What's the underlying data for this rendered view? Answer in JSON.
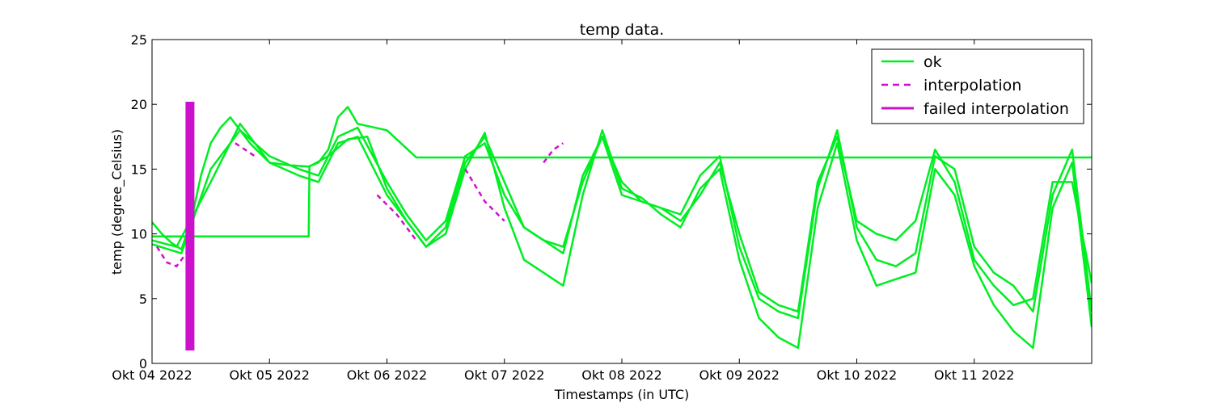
{
  "chart_data": {
    "type": "line",
    "title": "temp data.",
    "xlabel": "Timestamps (in UTC)",
    "ylabel": "temp (degree_Celsius)",
    "x_type": "date",
    "xlim": [
      "2022-10-04T00:00",
      "2022-10-12T00:00"
    ],
    "ylim": [
      0,
      25
    ],
    "x_ticks": [
      {
        "at": "2022-10-04T00:00",
        "label": "Okt 04 2022"
      },
      {
        "at": "2022-10-05T00:00",
        "label": "Okt 05 2022"
      },
      {
        "at": "2022-10-06T00:00",
        "label": "Okt 06 2022"
      },
      {
        "at": "2022-10-07T00:00",
        "label": "Okt 07 2022"
      },
      {
        "at": "2022-10-08T00:00",
        "label": "Okt 08 2022"
      },
      {
        "at": "2022-10-09T00:00",
        "label": "Okt 09 2022"
      },
      {
        "at": "2022-10-10T00:00",
        "label": "Okt 10 2022"
      },
      {
        "at": "2022-10-11T00:00",
        "label": "Okt 11 2022"
      }
    ],
    "y_ticks": [
      {
        "at": 0,
        "label": "0"
      },
      {
        "at": 5,
        "label": "5"
      },
      {
        "at": 10,
        "label": "10"
      },
      {
        "at": 15,
        "label": "15"
      },
      {
        "at": 20,
        "label": "20"
      },
      {
        "at": 25,
        "label": "25"
      }
    ],
    "grid": false,
    "legend": {
      "position": "top-right",
      "entries": [
        {
          "label": "ok",
          "color": "#00ee22",
          "style": "solid"
        },
        {
          "label": "interpolation",
          "color": "#cc11cc",
          "style": "dashed"
        },
        {
          "label": "failed interpolation",
          "color": "#cc11cc",
          "style": "solid-thick"
        }
      ]
    },
    "colors": {
      "ok": "#00ee22",
      "interpolation": "#cc11cc",
      "failed": "#cc11cc"
    },
    "series": [
      {
        "kind": "ok",
        "x": [
          "2022-10-04T00:00",
          "2022-10-04T02:00",
          "2022-10-04T04:00",
          "2022-10-04T06:00",
          "2022-10-04T08:00",
          "2022-10-04T10:00",
          "2022-10-04T12:00",
          "2022-10-04T14:00",
          "2022-10-04T16:00",
          "2022-10-04T18:00",
          "2022-10-04T20:00",
          "2022-10-05T00:00",
          "2022-10-05T04:00",
          "2022-10-05T08:00",
          "2022-10-05T10:00",
          "2022-10-05T12:00",
          "2022-10-05T14:00",
          "2022-10-05T16:00",
          "2022-10-05T18:00",
          "2022-10-06T00:00",
          "2022-10-06T06:00",
          "2022-10-06T12:00",
          "2022-10-06T18:00",
          "2022-10-07T00:00",
          "2022-10-07T06:00",
          "2022-10-07T12:00",
          "2022-10-07T18:00",
          "2022-10-08T00:00",
          "2022-10-08T06:00",
          "2022-10-08T12:00",
          "2022-10-08T18:00",
          "2022-10-09T00:00",
          "2022-10-09T06:00",
          "2022-10-09T12:00",
          "2022-10-09T18:00",
          "2022-10-10T00:00",
          "2022-10-10T06:00",
          "2022-10-10T12:00",
          "2022-10-10T18:00",
          "2022-10-11T00:00",
          "2022-10-11T06:00",
          "2022-10-11T12:00",
          "2022-10-11T18:00",
          "2022-10-12T00:00"
        ],
        "y": [
          10.9,
          10.0,
          9.3,
          8.8,
          11.0,
          14.5,
          17.0,
          18.2,
          19.0,
          18.0,
          17.0,
          15.5,
          15.3,
          15.2,
          15.5,
          16.5,
          19.0,
          19.8,
          18.5,
          18.0,
          15.9,
          15.9,
          15.9,
          15.9,
          15.9,
          15.9,
          15.9,
          15.9,
          15.9,
          15.9,
          15.9,
          15.9,
          15.9,
          15.9,
          15.9,
          15.9,
          15.9,
          15.9,
          15.9,
          15.9,
          15.9,
          15.9,
          15.9,
          15.9
        ]
      },
      {
        "kind": "ok",
        "x": [
          "2022-10-04T00:00",
          "2022-10-04T06:00",
          "2022-10-04T12:00",
          "2022-10-04T18:00",
          "2022-10-05T00:00",
          "2022-10-05T06:00",
          "2022-10-05T08:00",
          "2022-10-05T08:10",
          "2022-10-05T12:00",
          "2022-10-05T16:00",
          "2022-10-05T20:00",
          "2022-10-06T00:00",
          "2022-10-06T04:00",
          "2022-10-06T08:00",
          "2022-10-06T12:00",
          "2022-10-06T16:00",
          "2022-10-06T20:00",
          "2022-10-07T00:00",
          "2022-10-07T04:00",
          "2022-10-07T08:00",
          "2022-10-07T12:00",
          "2022-10-07T16:00",
          "2022-10-07T20:00",
          "2022-10-08T00:00",
          "2022-10-08T04:00",
          "2022-10-08T08:00",
          "2022-10-08T12:00",
          "2022-10-08T16:00",
          "2022-10-08T20:00",
          "2022-10-09T00:00",
          "2022-10-09T04:00",
          "2022-10-09T08:00",
          "2022-10-09T12:00",
          "2022-10-09T16:00",
          "2022-10-09T20:00",
          "2022-10-10T00:00",
          "2022-10-10T04:00",
          "2022-10-10T08:00",
          "2022-10-10T12:00",
          "2022-10-10T16:00",
          "2022-10-10T20:00",
          "2022-10-11T00:00",
          "2022-10-11T04:00",
          "2022-10-11T08:00",
          "2022-10-11T12:00",
          "2022-10-11T16:00",
          "2022-10-11T20:00",
          "2022-10-12T00:00"
        ],
        "y": [
          9.8,
          9.8,
          9.8,
          9.8,
          9.8,
          9.8,
          9.8,
          15.2,
          16.0,
          17.3,
          17.5,
          13.5,
          11.0,
          9.0,
          10.5,
          15.5,
          17.5,
          14.0,
          10.5,
          9.5,
          9.0,
          14.0,
          17.5,
          14.0,
          12.5,
          12.0,
          11.0,
          13.0,
          15.5,
          10.0,
          5.5,
          4.5,
          4.0,
          14.0,
          17.5,
          11.0,
          10.0,
          9.5,
          11.0,
          16.5,
          14.0,
          8.0,
          6.0,
          4.5,
          5.0,
          14.0,
          14.0,
          6.2
        ]
      },
      {
        "kind": "ok",
        "x": [
          "2022-10-04T00:00",
          "2022-10-04T05:00",
          "2022-10-04T12:00",
          "2022-10-04T18:00",
          "2022-10-05T00:00",
          "2022-10-05T06:00",
          "2022-10-05T10:00",
          "2022-10-05T14:00",
          "2022-10-05T18:00",
          "2022-10-06T00:00",
          "2022-10-06T04:00",
          "2022-10-06T08:00",
          "2022-10-06T12:00",
          "2022-10-06T16:00",
          "2022-10-06T20:00",
          "2022-10-07T00:00",
          "2022-10-07T04:00",
          "2022-10-07T08:00",
          "2022-10-07T12:00",
          "2022-10-07T16:00",
          "2022-10-07T20:00",
          "2022-10-08T00:00",
          "2022-10-08T04:00",
          "2022-10-08T08:00",
          "2022-10-08T12:00",
          "2022-10-08T16:00",
          "2022-10-08T20:00",
          "2022-10-09T00:00",
          "2022-10-09T04:00",
          "2022-10-09T08:00",
          "2022-10-09T12:00",
          "2022-10-09T16:00",
          "2022-10-09T20:00",
          "2022-10-10T00:00",
          "2022-10-10T04:00",
          "2022-10-10T08:00",
          "2022-10-10T12:00",
          "2022-10-10T16:00",
          "2022-10-10T20:00",
          "2022-10-11T00:00",
          "2022-10-11T04:00",
          "2022-10-11T08:00",
          "2022-10-11T12:00",
          "2022-10-11T16:00",
          "2022-10-11T20:00",
          "2022-10-12T00:00"
        ],
        "y": [
          9.5,
          9.0,
          14.0,
          18.5,
          15.5,
          14.5,
          14.0,
          17.0,
          17.5,
          13.0,
          11.0,
          9.0,
          10.0,
          15.0,
          17.8,
          12.0,
          8.0,
          7.0,
          6.0,
          13.0,
          18.0,
          13.5,
          12.8,
          11.5,
          10.5,
          13.5,
          15.0,
          8.0,
          3.5,
          2.0,
          1.2,
          12.0,
          17.0,
          9.5,
          6.0,
          6.5,
          7.0,
          15.0,
          13.0,
          7.5,
          4.5,
          2.5,
          1.2,
          12.0,
          15.5,
          2.8
        ]
      },
      {
        "kind": "ok",
        "x": [
          "2022-10-04T00:00",
          "2022-10-04T06:00",
          "2022-10-04T12:00",
          "2022-10-04T18:00",
          "2022-10-05T00:00",
          "2022-10-05T06:00",
          "2022-10-05T10:00",
          "2022-10-05T14:00",
          "2022-10-05T18:00",
          "2022-10-06T00:00",
          "2022-10-06T04:00",
          "2022-10-06T08:00",
          "2022-10-06T12:00",
          "2022-10-06T16:00",
          "2022-10-06T20:00",
          "2022-10-07T00:00",
          "2022-10-07T04:00",
          "2022-10-07T08:00",
          "2022-10-07T12:00",
          "2022-10-07T16:00",
          "2022-10-07T20:00",
          "2022-10-08T00:00",
          "2022-10-08T04:00",
          "2022-10-08T08:00",
          "2022-10-08T12:00",
          "2022-10-08T16:00",
          "2022-10-08T20:00",
          "2022-10-09T00:00",
          "2022-10-09T04:00",
          "2022-10-09T08:00",
          "2022-10-09T12:00",
          "2022-10-09T16:00",
          "2022-10-09T20:00",
          "2022-10-10T00:00",
          "2022-10-10T04:00",
          "2022-10-10T08:00",
          "2022-10-10T12:00",
          "2022-10-10T16:00",
          "2022-10-10T20:00",
          "2022-10-11T00:00",
          "2022-10-11T04:00",
          "2022-10-11T08:00",
          "2022-10-11T12:00",
          "2022-10-11T16:00",
          "2022-10-11T20:00",
          "2022-10-12T00:00"
        ],
        "y": [
          9.2,
          8.5,
          15.0,
          18.0,
          16.0,
          15.0,
          14.5,
          17.5,
          18.2,
          14.0,
          11.5,
          9.5,
          11.0,
          16.0,
          17.0,
          13.0,
          10.5,
          9.5,
          8.5,
          14.5,
          17.5,
          13.0,
          12.5,
          12.0,
          11.5,
          14.5,
          16.0,
          9.0,
          5.0,
          4.0,
          3.5,
          13.5,
          18.0,
          10.5,
          8.0,
          7.5,
          8.5,
          16.0,
          15.0,
          9.0,
          7.0,
          6.0,
          4.0,
          13.0,
          16.5,
          4.0
        ]
      }
    ],
    "interpolation": [
      {
        "x": [
          "2022-10-04T01:00",
          "2022-10-04T03:00",
          "2022-10-04T05:00",
          "2022-10-04T07:00",
          "2022-10-04T08:00"
        ],
        "y": [
          9.0,
          7.8,
          7.5,
          8.5,
          10.0
        ]
      },
      {
        "x": [
          "2022-10-04T17:00",
          "2022-10-04T19:00",
          "2022-10-04T21:00"
        ],
        "y": [
          17.0,
          16.5,
          16.0
        ]
      },
      {
        "x": [
          "2022-10-05T22:00",
          "2022-10-06T02:00",
          "2022-10-06T06:00"
        ],
        "y": [
          13.0,
          11.5,
          9.5
        ]
      },
      {
        "x": [
          "2022-10-06T16:00",
          "2022-10-06T20:00",
          "2022-10-07T00:00"
        ],
        "y": [
          15.0,
          12.5,
          11.0
        ]
      },
      {
        "x": [
          "2022-10-07T08:00",
          "2022-10-07T10:00",
          "2022-10-07T12:00"
        ],
        "y": [
          15.5,
          16.5,
          17.0
        ]
      }
    ],
    "failed_interpolation": [
      {
        "x": "2022-10-04T07:45",
        "y_min": 1.0,
        "y_max": 20.2
      }
    ]
  }
}
